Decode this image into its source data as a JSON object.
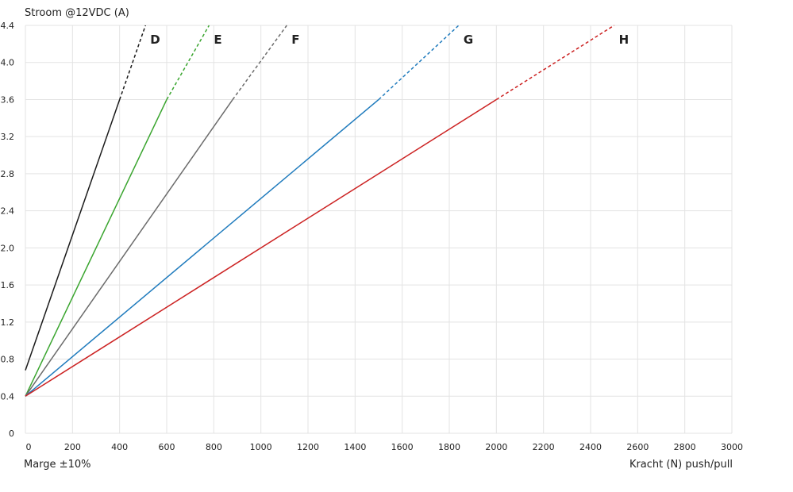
{
  "chart_data": {
    "type": "line",
    "ylabel": "Stroom @12VDC (A)",
    "xlabel": "Kracht (N) push/pull",
    "note": "Marge ±10%",
    "xlim": [
      0,
      3000
    ],
    "ylim": [
      0,
      4.4
    ],
    "x_ticks": [
      "0",
      "200",
      "400",
      "600",
      "800",
      "1000",
      "1200",
      "1400",
      "1600",
      "1800",
      "2000",
      "2200",
      "2400",
      "2600",
      "2800",
      "3000"
    ],
    "y_ticks": [
      "0",
      "0.4",
      "0.8",
      "1.2",
      "1.6",
      "2.0",
      "2.4",
      "2.8",
      "3.2",
      "3.6",
      "4.0",
      "4.4"
    ],
    "grid": true,
    "series": [
      {
        "name": "D",
        "color": "#1a1a1a",
        "solid": [
          [
            0,
            0.68
          ],
          [
            400,
            3.6
          ]
        ],
        "dashed": [
          [
            400,
            3.6
          ],
          [
            510,
            4.4
          ]
        ]
      },
      {
        "name": "E",
        "color": "#3aa52f",
        "solid": [
          [
            0,
            0.4
          ],
          [
            600,
            3.6
          ]
        ],
        "dashed": [
          [
            600,
            3.6
          ],
          [
            780,
            4.4
          ]
        ]
      },
      {
        "name": "F",
        "color": "#6b6b6b",
        "solid": [
          [
            0,
            0.4
          ],
          [
            880,
            3.6
          ]
        ],
        "dashed": [
          [
            880,
            3.6
          ],
          [
            1110,
            4.4
          ]
        ]
      },
      {
        "name": "G",
        "color": "#1f7bbd",
        "solid": [
          [
            0,
            0.4
          ],
          [
            1500,
            3.6
          ]
        ],
        "dashed": [
          [
            1500,
            3.6
          ],
          [
            1840,
            4.4
          ]
        ]
      },
      {
        "name": "H",
        "color": "#cc2222",
        "solid": [
          [
            0,
            0.4
          ],
          [
            2000,
            3.6
          ]
        ],
        "dashed": [
          [
            2000,
            3.6
          ],
          [
            2500,
            4.4
          ]
        ]
      }
    ]
  }
}
